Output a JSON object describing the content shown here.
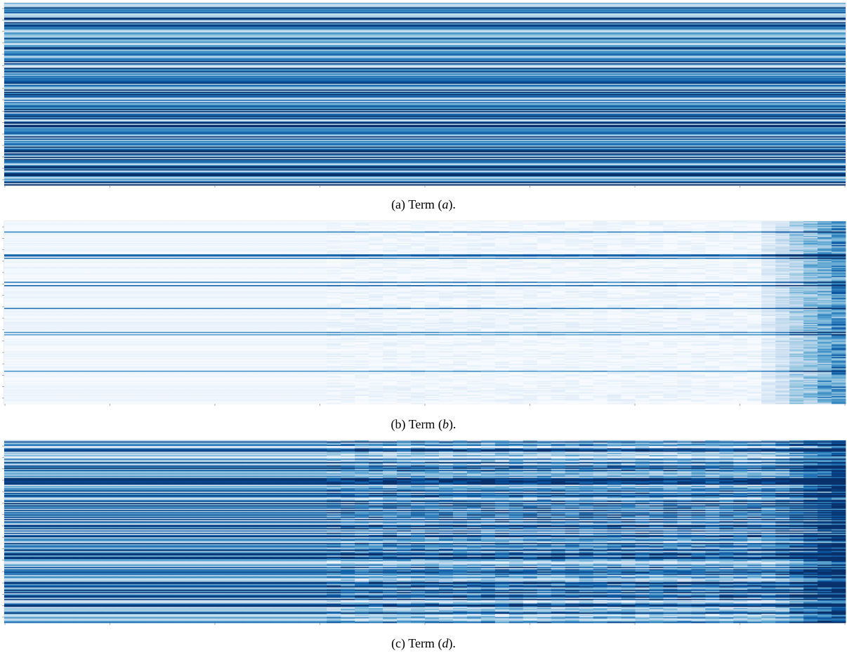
{
  "figure": {
    "panels": [
      {
        "caption": {
          "label": "(a) Term ",
          "lparen": "(",
          "var": "a",
          "rparen": ")."
        }
      },
      {
        "caption": {
          "label": "(b) Term ",
          "lparen": "(",
          "var": "b",
          "rparen": ")."
        }
      },
      {
        "caption": {
          "label": "(c) Term ",
          "lparen": "(",
          "var": "d",
          "rparen": ")."
        }
      }
    ]
  },
  "chart_data": [
    {
      "type": "heatmap",
      "title": "",
      "xlabel": "",
      "ylabel": "",
      "colormap": "Blues",
      "colors": {
        "low": "#f7fbff",
        "high": "#08306b"
      },
      "rows": 160,
      "x_tick_count": 9,
      "y_tick_count": 16,
      "description_values": "mostly high intensity (dark blue) with scattered light rows; row-constant along x",
      "mean_level": 0.72,
      "row_profile_seed": 11,
      "x_structure": "constant"
    },
    {
      "type": "heatmap",
      "title": "",
      "xlabel": "",
      "ylabel": "",
      "colormap": "Blues",
      "colors": {
        "low": "#f7fbff",
        "high": "#08306b"
      },
      "rows": 160,
      "x_tick_count": 9,
      "y_tick_count": 16,
      "mean_level": 0.08,
      "row_profile_seed": 23,
      "x_structure": "rising-right-edge"
    },
    {
      "type": "heatmap",
      "title": "",
      "xlabel": "",
      "ylabel": "",
      "colormap": "Blues",
      "colors": {
        "low": "#f7fbff",
        "high": "#08306b"
      },
      "rows": 160,
      "x_tick_count": 9,
      "y_tick_count": 16,
      "mean_level": 0.55,
      "row_profile_seed": 37,
      "x_structure": "textured-right-half"
    }
  ]
}
